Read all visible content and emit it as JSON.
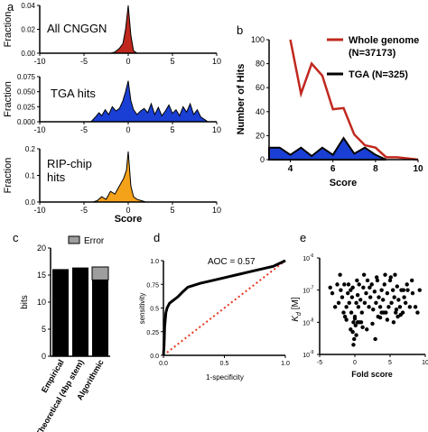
{
  "panel_letters": {
    "a": "a",
    "b": "b",
    "c": "c",
    "d": "d",
    "e": "e"
  },
  "chart_data": [
    {
      "id": "a1",
      "type": "area",
      "panel": "a",
      "ylabel": "Fraction",
      "annotation": "All CNGGN",
      "xlim": [
        -10,
        10
      ],
      "ylim": [
        0,
        0.04
      ],
      "yticks": [
        "0.04",
        "0.02",
        "0.00"
      ],
      "xticks": [
        "-10",
        "-5",
        "0",
        "5",
        "10"
      ],
      "color": "#c0281e",
      "x": [
        -2,
        -1.5,
        -1,
        -0.6,
        -0.3,
        0,
        0.3,
        0.6,
        1
      ],
      "y": [
        0,
        0.001,
        0.004,
        0.008,
        0.02,
        0.04,
        0.015,
        0.002,
        0
      ]
    },
    {
      "id": "a2",
      "type": "area",
      "panel": "a",
      "ylabel": "Fraction",
      "annotation": "TGA hits",
      "xlim": [
        -10,
        10
      ],
      "ylim": [
        0,
        0.075
      ],
      "yticks": [
        "0.075",
        "0.050",
        "0.025",
        "0.000"
      ],
      "xticks": [
        "-10",
        "-5",
        "0",
        "5",
        "10"
      ],
      "color": "#1a3fd4",
      "x": [
        -4.2,
        -3.7,
        -3.3,
        -3,
        -2.6,
        -2.2,
        -1.8,
        -1.4,
        -1,
        -0.6,
        -0.3,
        0,
        0.3,
        0.6,
        1,
        1.4,
        1.8,
        2.2,
        2.6,
        3,
        3.4,
        3.8,
        4.2,
        4.6,
        5,
        5.4,
        5.8,
        6.2,
        6.6,
        7,
        7.4,
        7.8,
        8.2,
        8.6,
        9
      ],
      "y": [
        0,
        0.008,
        0.015,
        0.01,
        0.02,
        0.012,
        0.025,
        0.018,
        0.022,
        0.035,
        0.05,
        0.068,
        0.035,
        0.02,
        0.012,
        0.018,
        0.022,
        0.015,
        0.03,
        0.012,
        0.024,
        0.01,
        0.018,
        0.028,
        0.014,
        0.02,
        0.01,
        0.025,
        0.016,
        0.03,
        0.012,
        0.02,
        0.008,
        0.004,
        0
      ]
    },
    {
      "id": "a3",
      "type": "area",
      "panel": "a",
      "ylabel": "Fraction",
      "annotation": "RIP-chip\nhits",
      "xlabel": "Score",
      "xlim": [
        -10,
        10
      ],
      "ylim": [
        0,
        0.2
      ],
      "yticks": [
        "0.2",
        "0.1",
        "0.0"
      ],
      "xticks": [
        "-10",
        "-5",
        "0",
        "5",
        "10"
      ],
      "color": "#f5a21b",
      "x": [
        -4,
        -3.5,
        -3,
        -2.5,
        -2,
        -1.5,
        -1,
        -0.5,
        -0.2,
        0,
        0.3,
        0.6,
        1,
        1.5,
        2
      ],
      "y": [
        0,
        0.005,
        0.02,
        0.01,
        0.04,
        0.03,
        0.06,
        0.09,
        0.12,
        0.19,
        0.06,
        0.02,
        0.01,
        0.005,
        0
      ]
    },
    {
      "id": "b",
      "type": "line",
      "panel": "b",
      "xlabel": "Score",
      "ylabel": "Number of Hits",
      "xlim": [
        3,
        10
      ],
      "ylim": [
        0,
        100
      ],
      "xticks": [
        "4",
        "6",
        "8",
        "10"
      ],
      "yticks": [
        "0",
        "20",
        "40",
        "60",
        "80",
        "100"
      ],
      "series": [
        {
          "name": "Whole genome\n(N=37173)",
          "color": "#c0281e",
          "x": [
            4,
            4.5,
            5,
            5.5,
            6,
            6.5,
            7,
            7.5,
            8,
            8.5,
            9,
            9.5,
            10
          ],
          "y": [
            100,
            55,
            80,
            70,
            42,
            43,
            21,
            12,
            10,
            2,
            2,
            1,
            0
          ]
        },
        {
          "name": "TGA (N=325)",
          "color": "#000000",
          "fill": "#1a3fd4",
          "x": [
            3,
            3.5,
            4,
            4.5,
            5,
            5.5,
            6,
            6.5,
            7,
            7.5,
            8,
            8.5
          ],
          "y": [
            10,
            10,
            4,
            10,
            3,
            10,
            4,
            18,
            5,
            10,
            4,
            0
          ]
        }
      ]
    },
    {
      "id": "c",
      "type": "bar",
      "panel": "c",
      "ylabel": "bits",
      "ylim": [
        0,
        20
      ],
      "yticks": [
        "0",
        "5",
        "10",
        "15",
        "20"
      ],
      "categories": [
        "Empirical",
        "Theoretical (4bp stem)",
        "Algorithmic"
      ],
      "values": [
        16.1,
        16.4,
        14.1
      ],
      "error": [
        0,
        0,
        2.4
      ],
      "legend": [
        "Error"
      ],
      "colors": {
        "bar": "#000000",
        "error": "#9e9e9e"
      }
    },
    {
      "id": "d",
      "type": "line",
      "panel": "d",
      "xlabel": "1-specificity",
      "ylabel": "sensitivity",
      "annotation": "AOC = 0.57",
      "xlim": [
        0,
        1
      ],
      "ylim": [
        0,
        1
      ],
      "xticks": [
        "0.0",
        "0.5",
        "1.0"
      ],
      "yticks": [
        "0.0",
        "0.25",
        "0.5",
        "0.75",
        "1.0"
      ],
      "colors": {
        "roc": "#000000",
        "diagonal": "#e8341c"
      },
      "x": [
        0,
        0.005,
        0.01,
        0.02,
        0.03,
        0.05,
        0.08,
        0.1,
        0.12,
        0.15,
        0.2,
        0.3,
        0.4,
        0.5,
        0.6,
        0.7,
        0.8,
        0.9,
        1.0
      ],
      "y": [
        0,
        0.1,
        0.3,
        0.45,
        0.5,
        0.55,
        0.58,
        0.6,
        0.62,
        0.66,
        0.72,
        0.76,
        0.79,
        0.82,
        0.85,
        0.88,
        0.91,
        0.94,
        1.0
      ]
    },
    {
      "id": "e",
      "type": "scatter",
      "panel": "e",
      "xlabel": "Fold score",
      "ylabel": "K_d [M]",
      "xlim": [
        -5,
        10
      ],
      "yscale": "log",
      "ylim": [
        1e-09,
        1e-06
      ],
      "xticks": [
        "-5",
        "0",
        "5",
        "10"
      ],
      "yticks": [
        "10",
        "10",
        "10",
        "10"
      ],
      "ytick_exps": [
        "-6",
        "-7",
        "-8",
        "-9"
      ],
      "x": [
        -3.2,
        -2.8,
        -2.5,
        -2.3,
        -2,
        -1.8,
        -1.6,
        -1.5,
        -1.2,
        -1,
        -0.9,
        -0.8,
        -0.6,
        -0.5,
        -0.4,
        -0.3,
        -0.2,
        -0.1,
        0,
        0.1,
        0.2,
        0.3,
        0.4,
        0.5,
        0.6,
        0.8,
        1,
        1.2,
        1.4,
        1.6,
        1.8,
        2,
        2.2,
        2.4,
        2.6,
        2.8,
        3,
        3.2,
        3.4,
        3.6,
        3.8,
        4,
        4.2,
        4.4,
        4.6,
        4.8,
        5,
        5.2,
        5.4,
        5.6,
        5.8,
        6,
        6.2,
        6.4,
        6.6,
        6.8,
        7,
        7.2,
        7.4,
        7.8,
        8.2,
        8.6,
        -0.3,
        0.2,
        0.6,
        -1.2,
        1.1,
        2.5,
        3.3,
        4.1,
        5.5,
        6.5,
        -2.1,
        0.0,
        1.7,
        3.8,
        5.1,
        7.5,
        -0.6,
        0.4,
        2.9,
        4.6,
        6.1,
        -1.4,
        0.9,
        3.6,
        5.9,
        8.9,
        -3.5,
        -0.2,
        1.3,
        2.1,
        3.1,
        4.3,
        5.7,
        6.9,
        8.1,
        9.2
      ],
      "y": [
        8e-08,
        3e-08,
        1.5e-07,
        4e-08,
        1e-07,
        6e-08,
        2e-08,
        1.5e-07,
        3e-08,
        8e-08,
        1.5e-07,
        4e-08,
        1e-07,
        2e-08,
        6e-08,
        1.2e-07,
        2e-09,
        3e-09,
        1.3e-08,
        8e-09,
        4e-08,
        2e-07,
        7e-08,
        3e-08,
        1.5e-07,
        5e-08,
        2e-08,
        1.2e-07,
        4e-08,
        8e-08,
        2e-07,
        3e-08,
        6e-08,
        1.5e-07,
        2.5e-08,
        9e-08,
        4e-08,
        2e-07,
        6e-08,
        3e-08,
        1e-07,
        5e-08,
        1.5e-07,
        2e-08,
        8e-08,
        3e-08,
        2e-07,
        4e-08,
        1e-07,
        6e-08,
        2e-08,
        1.3e-07,
        5e-08,
        3e-08,
        1e-07,
        2e-08,
        6e-08,
        4e-08,
        1.5e-07,
        3e-08,
        8e-08,
        3e-08,
        5e-09,
        4e-09,
        1e-08,
        1.2e-08,
        7e-09,
        9e-09,
        1.5e-08,
        2e-08,
        1e-08,
        1.7e-08,
        3e-07,
        1.5e-08,
        6e-09,
        2e-08,
        2.5e-07,
        1e-07,
        6e-09,
        1e-08,
        3e-09,
        1.2e-08,
        1.5e-08,
        1.5e-08,
        1e-08,
        1.4e-08,
        2.5e-08,
        2e-08,
        1.2e-07,
        1e-08,
        3e-07,
        1.2e-07,
        2.5e-07,
        3e-07,
        3e-07,
        1e-07,
        2e-07,
        1e-07
      ],
      "color": "#000000"
    }
  ]
}
